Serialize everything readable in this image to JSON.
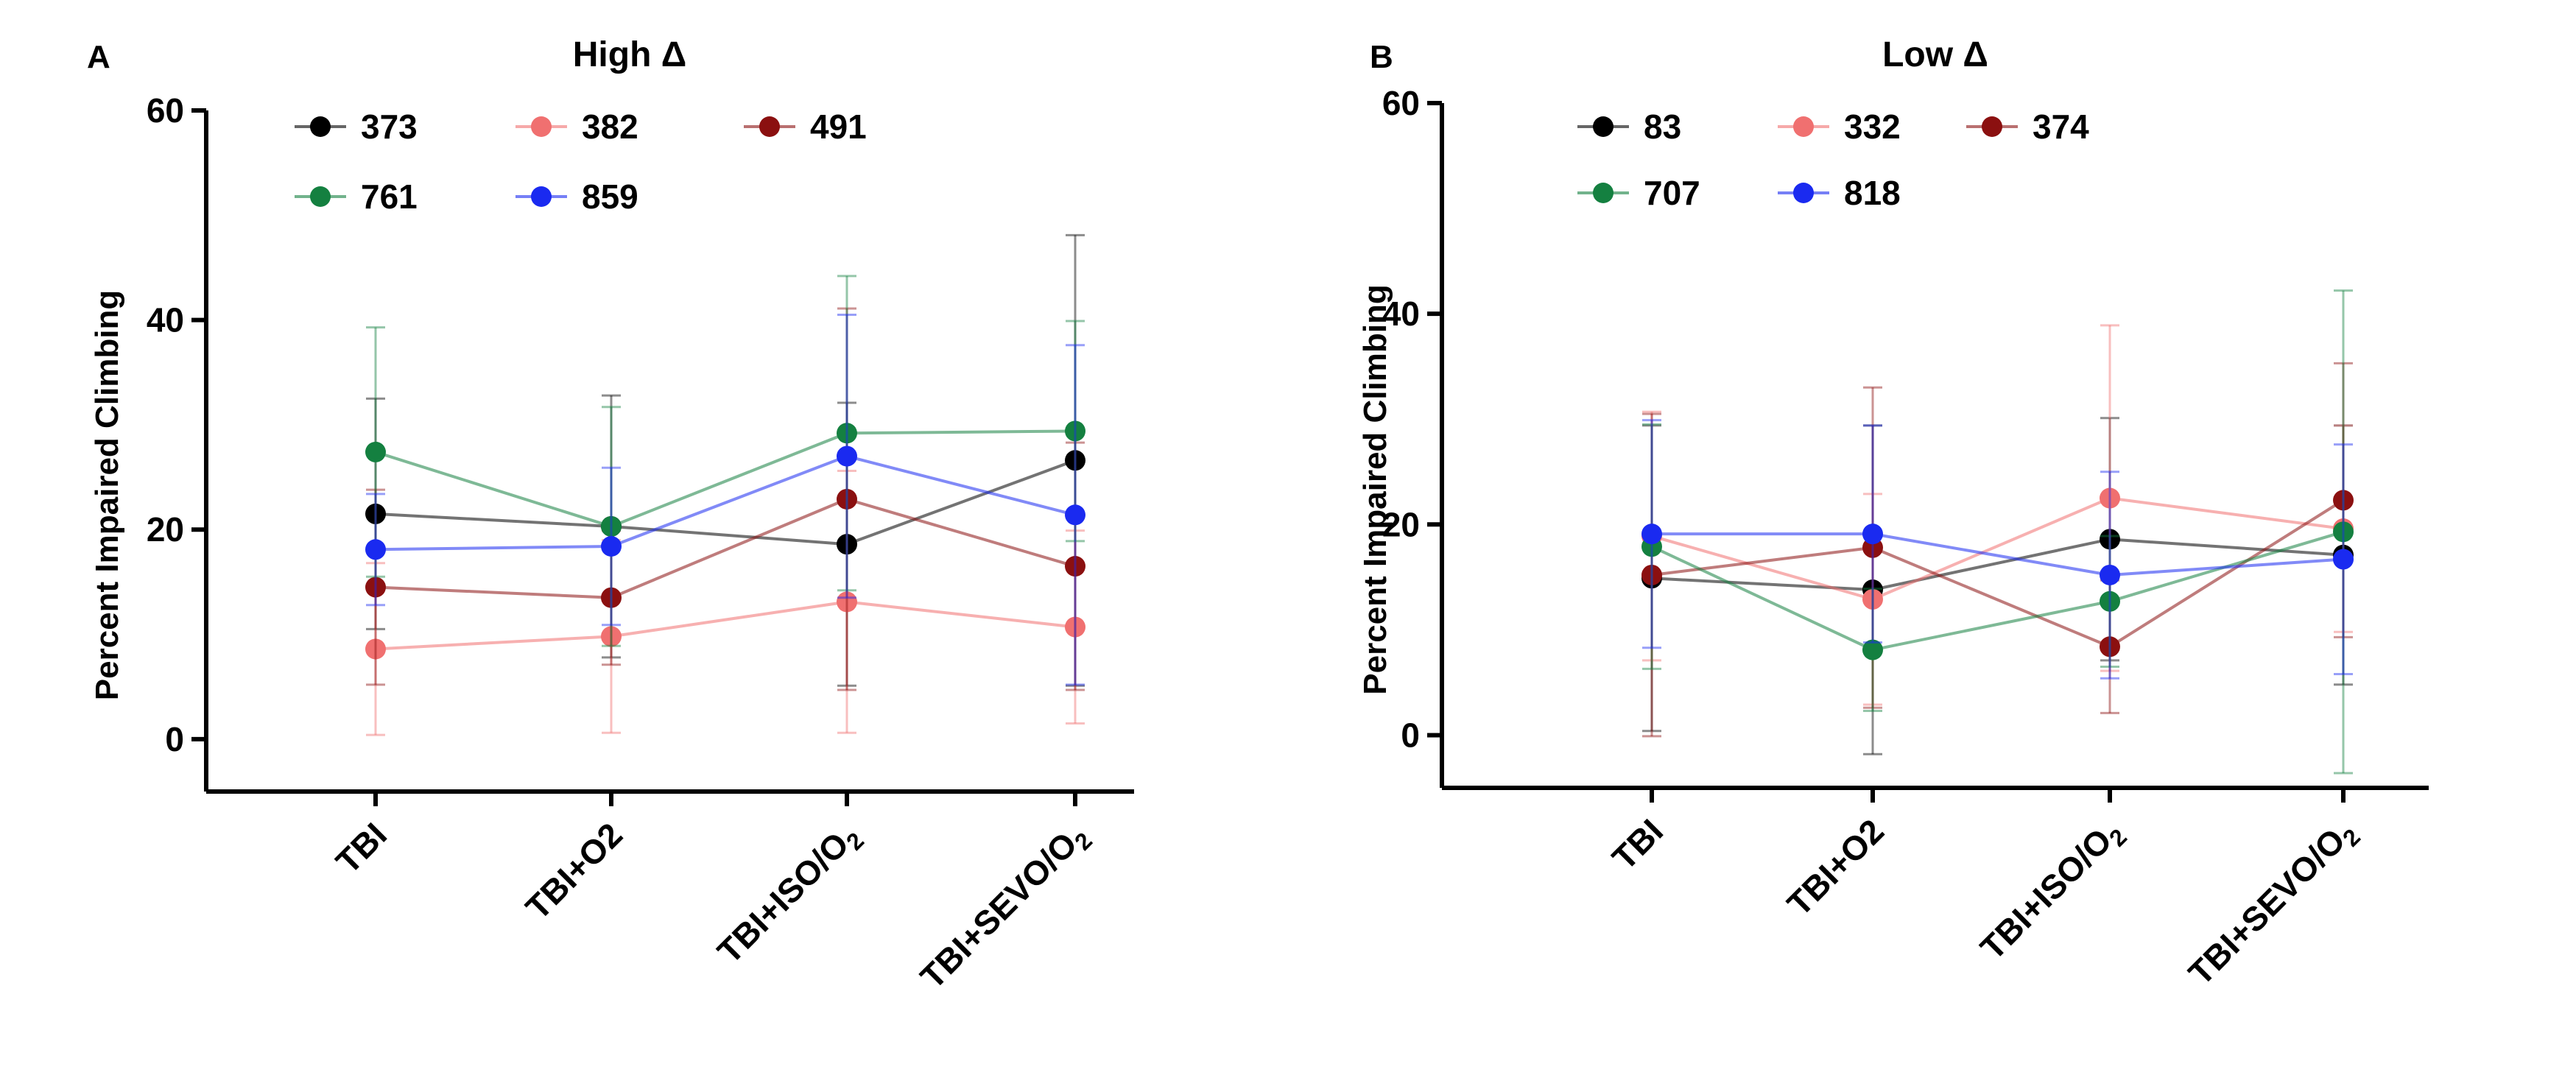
{
  "figure": "Percent impaired climbing across treatment conditions for fly lines",
  "chart_data": [
    {
      "type": "line",
      "panel": "A",
      "title": "High Δ",
      "xlabel": "",
      "ylabel": "Percent Impaired Climbing",
      "ylim": [
        -5,
        60
      ],
      "yticks": [
        "0",
        "20",
        "40",
        "60"
      ],
      "categories": [
        "TBI",
        "TBI+O2",
        "TBI+ISO/O₂",
        "TBI+SEVO/O₂"
      ],
      "legend_position": "top-left",
      "series": [
        {
          "name": "373",
          "color": "#000000",
          "values": [
            21.5,
            20.3,
            18.6,
            26.6
          ],
          "errors": [
            11.0,
            12.5,
            13.5,
            21.5
          ]
        },
        {
          "name": "382",
          "color": "#f07070",
          "values": [
            8.6,
            9.8,
            13.1,
            10.7
          ],
          "errors": [
            8.2,
            9.2,
            12.5,
            9.2
          ]
        },
        {
          "name": "491",
          "color": "#8b1010",
          "values": [
            14.5,
            13.5,
            22.9,
            16.5
          ],
          "errors": [
            9.3,
            6.4,
            18.2,
            11.8
          ]
        },
        {
          "name": "761",
          "color": "#148040",
          "values": [
            27.4,
            20.3,
            29.2,
            29.4
          ],
          "errors": [
            11.9,
            11.4,
            15.0,
            10.5
          ]
        },
        {
          "name": "859",
          "color": "#1a2af0",
          "values": [
            18.1,
            18.4,
            27.0,
            21.4
          ],
          "errors": [
            5.3,
            7.5,
            13.5,
            16.2
          ]
        }
      ]
    },
    {
      "type": "line",
      "panel": "B",
      "title": "Low Δ",
      "xlabel": "",
      "ylabel": "Percent Impaired Climbing",
      "ylim": [
        -5,
        60
      ],
      "yticks": [
        "0",
        "20",
        "40",
        "60"
      ],
      "categories": [
        "TBI",
        "TBI+O2",
        "TBI+ISO/O₂",
        "TBI+SEVO/O₂"
      ],
      "legend_position": "top-left",
      "series": [
        {
          "name": "83",
          "color": "#000000",
          "values": [
            14.9,
            13.8,
            18.6,
            17.1
          ],
          "errors": [
            14.5,
            15.6,
            11.5,
            12.3
          ]
        },
        {
          "name": "332",
          "color": "#f07070",
          "values": [
            18.9,
            12.9,
            22.5,
            19.6
          ],
          "errors": [
            11.8,
            10.0,
            16.4,
            9.8
          ]
        },
        {
          "name": "374",
          "color": "#8b1010",
          "values": [
            15.2,
            17.8,
            8.4,
            22.3
          ],
          "errors": [
            15.3,
            15.2,
            6.3,
            13.0
          ]
        },
        {
          "name": "707",
          "color": "#148040",
          "values": [
            17.9,
            8.1,
            12.7,
            19.3
          ],
          "errors": [
            11.6,
            5.8,
            6.2,
            22.9
          ]
        },
        {
          "name": "818",
          "color": "#1a2af0",
          "values": [
            19.1,
            19.1,
            15.2,
            16.7
          ],
          "errors": [
            10.8,
            10.3,
            9.8,
            10.9
          ]
        }
      ]
    }
  ]
}
